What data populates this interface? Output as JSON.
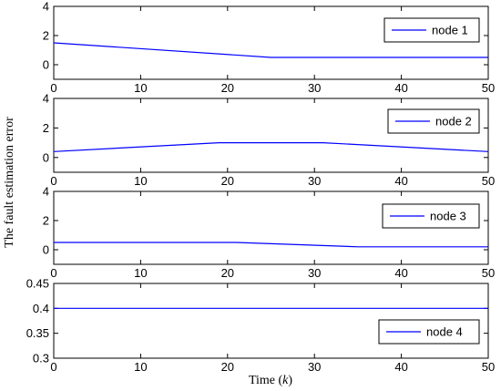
{
  "figure": {
    "ylabel": "The fault estimation error",
    "xlabel_prefix": "Time (",
    "xlabel_var": "k",
    "xlabel_suffix": ")"
  },
  "chart_data": [
    {
      "type": "line",
      "xlim": [
        0,
        50
      ],
      "ylim": [
        -1,
        4
      ],
      "xticks": [
        0,
        10,
        20,
        30,
        40,
        50
      ],
      "yticks": [
        0,
        2,
        4
      ],
      "ytick_labels": [
        "0",
        "2",
        "4"
      ],
      "legend_position": "top-right",
      "color": "#0000ff",
      "series": [
        {
          "name": "node 1",
          "x": [
            0,
            25,
            50
          ],
          "y": [
            1.5,
            0.5,
            0.5
          ]
        }
      ]
    },
    {
      "type": "line",
      "xlim": [
        0,
        50
      ],
      "ylim": [
        -1,
        4
      ],
      "xticks": [
        0,
        10,
        20,
        30,
        40,
        50
      ],
      "yticks": [
        0,
        2,
        4
      ],
      "ytick_labels": [
        "0",
        "2",
        "4"
      ],
      "legend_position": "top-right",
      "color": "#0000ff",
      "series": [
        {
          "name": "node 2",
          "x": [
            0,
            19,
            31,
            50
          ],
          "y": [
            0.4,
            1.0,
            1.0,
            0.4
          ]
        }
      ]
    },
    {
      "type": "line",
      "xlim": [
        0,
        50
      ],
      "ylim": [
        -1,
        4
      ],
      "xticks": [
        0,
        10,
        20,
        30,
        40,
        50
      ],
      "yticks": [
        0,
        2,
        4
      ],
      "ytick_labels": [
        "0",
        "2",
        "4"
      ],
      "legend_position": "right",
      "color": "#0000ff",
      "series": [
        {
          "name": "node 3",
          "x": [
            0,
            21,
            35,
            50
          ],
          "y": [
            0.5,
            0.5,
            0.2,
            0.2
          ]
        }
      ]
    },
    {
      "type": "line",
      "xlim": [
        0,
        50
      ],
      "ylim": [
        0.3,
        0.45
      ],
      "xticks": [
        0,
        10,
        20,
        30,
        40,
        50
      ],
      "yticks": [
        0.3,
        0.35,
        0.4,
        0.45
      ],
      "ytick_labels": [
        "0.3",
        "0.35",
        "0.4",
        "0.45"
      ],
      "legend_position": "bottom-right",
      "color": "#0000ff",
      "series": [
        {
          "name": "node 4",
          "x": [
            0,
            50
          ],
          "y": [
            0.4,
            0.4
          ]
        }
      ]
    }
  ]
}
